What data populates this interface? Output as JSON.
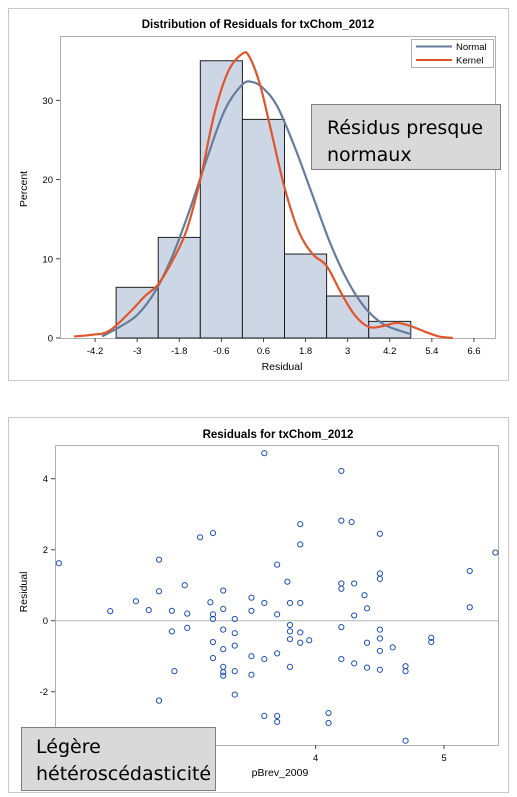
{
  "colors": {
    "bar_fill": "#cdd6e5",
    "bar_stroke": "#1f1f1f",
    "normal_curve": "#667c9c",
    "kernel_curve": "#e0562a",
    "scatter_marker": "#1f4fb5",
    "reference_line": "#b5b5b5",
    "callout_fill": "#d9d9d9"
  },
  "annotations": {
    "histogram_note_line1": "Résidus presque",
    "histogram_note_line2": "normaux",
    "scatter_note_line1": "Légère",
    "scatter_note_line2": "hétéroscédasticité"
  },
  "chart_data": [
    {
      "type": "bar",
      "title": "Distribution of Residuals for txChom_2012",
      "xlabel": "Residual",
      "ylabel": "Percent",
      "xlim": [
        -5.2,
        7.2
      ],
      "ylim": [
        0,
        38
      ],
      "xticks": [
        "-4.2",
        "-3",
        "-1.8",
        "-0.6",
        "0.6",
        "1.8",
        "3",
        "4.2",
        "5.4",
        "6.6"
      ],
      "xtick_values": [
        -4.2,
        -3,
        -1.8,
        -0.6,
        0.6,
        1.8,
        3,
        4.2,
        5.4,
        6.6
      ],
      "yticks": [
        0,
        10,
        20,
        30
      ],
      "bins": [
        {
          "from": -3.6,
          "to": -2.4,
          "value": 6.4
        },
        {
          "from": -2.4,
          "to": -1.2,
          "value": 12.7
        },
        {
          "from": -1.2,
          "to": 0.0,
          "value": 35.0
        },
        {
          "from": 0.0,
          "to": 1.2,
          "value": 27.6
        },
        {
          "from": 1.2,
          "to": 2.4,
          "value": 10.6
        },
        {
          "from": 2.4,
          "to": 3.6,
          "value": 5.3
        },
        {
          "from": 3.6,
          "to": 4.8,
          "value": 2.1
        }
      ],
      "series": [
        {
          "name": "Normal",
          "x": [
            -4.0,
            -3.5,
            -3.0,
            -2.5,
            -2.0,
            -1.5,
            -1.0,
            -0.5,
            0.0,
            0.3,
            0.6,
            1.0,
            1.5,
            2.0,
            2.5,
            3.0,
            3.5,
            4.0,
            4.5,
            4.8
          ],
          "values": [
            0.2,
            1.4,
            2.9,
            5.8,
            10.3,
            16.2,
            22.8,
            28.8,
            32.0,
            32.3,
            31.5,
            29.2,
            24.0,
            18.0,
            12.0,
            7.2,
            3.8,
            1.8,
            0.9,
            0.5
          ]
        },
        {
          "name": "Kernel",
          "x": [
            -4.8,
            -4.3,
            -3.8,
            -3.2,
            -2.8,
            -2.4,
            -2.0,
            -1.6,
            -1.2,
            -0.8,
            -0.4,
            0.0,
            0.2,
            0.5,
            0.8,
            1.2,
            1.6,
            2.0,
            2.4,
            2.8,
            3.2,
            3.6,
            4.0,
            4.4,
            4.8,
            5.2,
            5.6,
            6.0
          ],
          "values": [
            0.2,
            0.4,
            0.9,
            3.3,
            5.2,
            6.8,
            9.7,
            13.5,
            20.0,
            28.3,
            33.7,
            35.9,
            35.5,
            32.0,
            26.5,
            19.0,
            13.5,
            10.6,
            9.1,
            5.8,
            2.9,
            1.4,
            1.5,
            1.9,
            1.5,
            0.8,
            0.2,
            0.0
          ]
        }
      ],
      "legend_position": "top-right"
    },
    {
      "type": "scatter",
      "title": "Residuals for txChom_2012",
      "xlabel": "pBrev_2009",
      "ylabel": "Residual",
      "xlim": [
        1.97,
        5.42
      ],
      "ylim": [
        -3.5,
        4.95
      ],
      "xticks": [
        3,
        4,
        5
      ],
      "yticks": [
        -2,
        0,
        2,
        4
      ],
      "reference_line_y": 0,
      "points": [
        [
          2.0,
          1.62
        ],
        [
          2.4,
          0.27
        ],
        [
          2.6,
          0.55
        ],
        [
          2.7,
          0.3
        ],
        [
          2.78,
          1.72
        ],
        [
          2.78,
          0.83
        ],
        [
          2.78,
          -2.25
        ],
        [
          2.88,
          0.28
        ],
        [
          2.88,
          -0.3
        ],
        [
          2.9,
          -1.42
        ],
        [
          2.98,
          1.0
        ],
        [
          3.0,
          0.2
        ],
        [
          3.0,
          -0.2
        ],
        [
          3.1,
          2.35
        ],
        [
          3.18,
          0.52
        ],
        [
          3.2,
          2.47
        ],
        [
          3.2,
          0.18
        ],
        [
          3.2,
          0.05
        ],
        [
          3.2,
          -0.6
        ],
        [
          3.2,
          -1.05
        ],
        [
          3.28,
          0.85
        ],
        [
          3.28,
          0.33
        ],
        [
          3.28,
          -0.25
        ],
        [
          3.28,
          -0.8
        ],
        [
          3.28,
          -1.3
        ],
        [
          3.28,
          -1.45
        ],
        [
          3.28,
          -1.55
        ],
        [
          3.37,
          0.05
        ],
        [
          3.37,
          -0.35
        ],
        [
          3.37,
          -0.7
        ],
        [
          3.37,
          -1.42
        ],
        [
          3.37,
          -2.08
        ],
        [
          3.5,
          0.65
        ],
        [
          3.5,
          0.28
        ],
        [
          3.5,
          -1.0
        ],
        [
          3.5,
          -1.52
        ],
        [
          3.6,
          4.72
        ],
        [
          3.6,
          0.5
        ],
        [
          3.6,
          -1.08
        ],
        [
          3.6,
          -2.68
        ],
        [
          3.7,
          1.58
        ],
        [
          3.7,
          0.18
        ],
        [
          3.7,
          -0.92
        ],
        [
          3.7,
          -2.68
        ],
        [
          3.7,
          -2.85
        ],
        [
          3.78,
          1.1
        ],
        [
          3.8,
          0.5
        ],
        [
          3.8,
          -0.12
        ],
        [
          3.8,
          -0.3
        ],
        [
          3.8,
          -0.52
        ],
        [
          3.8,
          -1.3
        ],
        [
          3.88,
          2.72
        ],
        [
          3.88,
          2.15
        ],
        [
          3.88,
          0.5
        ],
        [
          3.88,
          -0.33
        ],
        [
          3.88,
          -0.62
        ],
        [
          3.95,
          -0.55
        ],
        [
          4.1,
          -2.6
        ],
        [
          4.1,
          -2.88
        ],
        [
          4.2,
          4.22
        ],
        [
          4.2,
          2.82
        ],
        [
          4.2,
          1.05
        ],
        [
          4.2,
          0.9
        ],
        [
          4.2,
          -0.18
        ],
        [
          4.2,
          -1.08
        ],
        [
          4.28,
          2.78
        ],
        [
          4.3,
          1.05
        ],
        [
          4.3,
          0.15
        ],
        [
          4.3,
          -1.2
        ],
        [
          4.38,
          0.72
        ],
        [
          4.4,
          0.35
        ],
        [
          4.4,
          -0.62
        ],
        [
          4.4,
          -1.32
        ],
        [
          4.5,
          2.45
        ],
        [
          4.5,
          1.33
        ],
        [
          4.5,
          1.18
        ],
        [
          4.5,
          -0.25
        ],
        [
          4.5,
          -0.5
        ],
        [
          4.5,
          -0.85
        ],
        [
          4.5,
          -1.38
        ],
        [
          4.6,
          -0.75
        ],
        [
          4.7,
          -1.28
        ],
        [
          4.7,
          -1.42
        ],
        [
          4.7,
          -3.38
        ],
        [
          4.9,
          -0.48
        ],
        [
          4.9,
          -0.6
        ],
        [
          5.2,
          1.4
        ],
        [
          5.2,
          0.38
        ],
        [
          5.4,
          1.92
        ]
      ]
    }
  ]
}
